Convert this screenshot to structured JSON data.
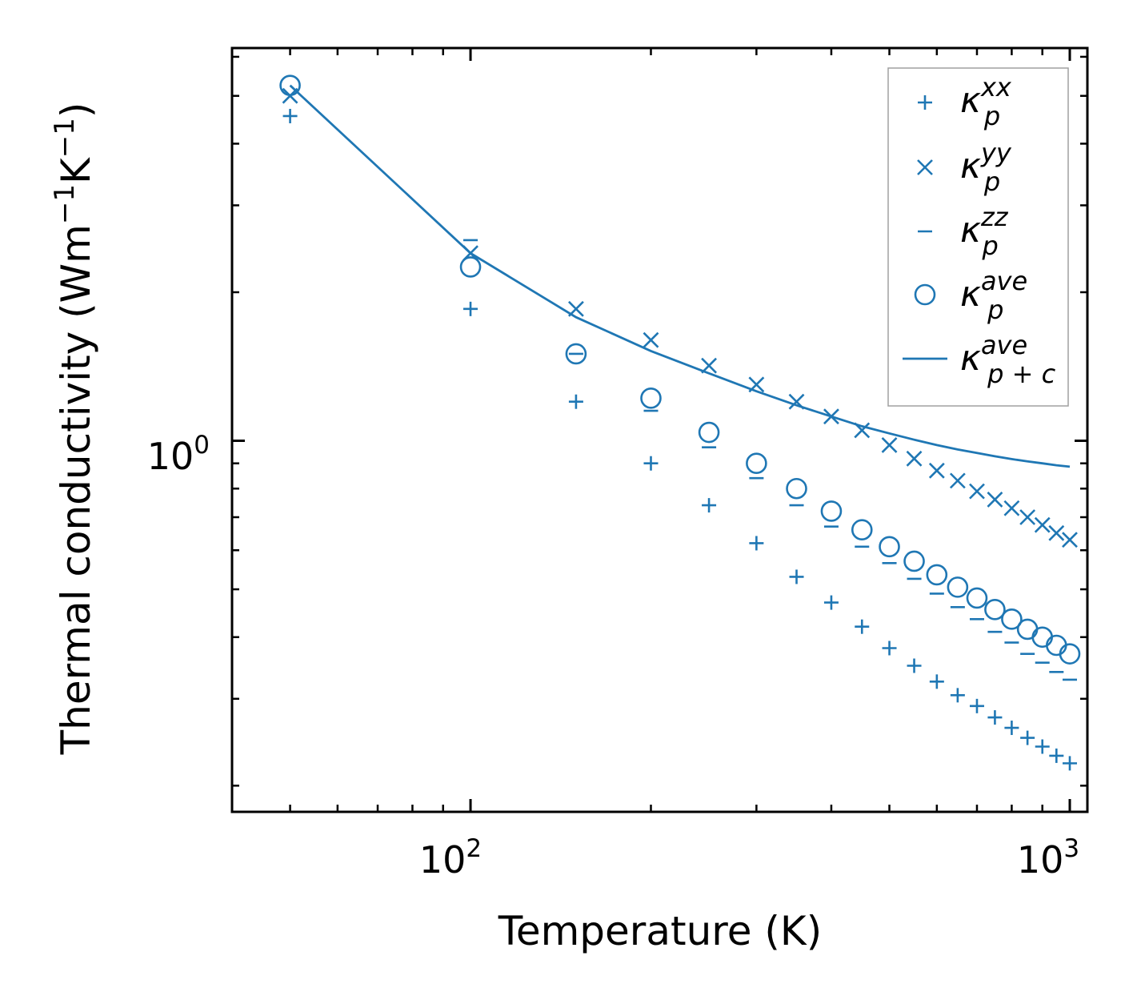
{
  "chart_data": {
    "type": "scatter",
    "xscale": "log",
    "yscale": "log",
    "xlim": [
      40,
      1070
    ],
    "ylim": [
      0.177,
      6.25
    ],
    "xlabel": "Temperature (K)",
    "ylabel": "Thermal conductivity (Wm",
    "ylabel_unit_exp1": "−1",
    "ylabel_unit_mid": "K",
    "ylabel_unit_exp2": "−1",
    "ylabel_close": ")",
    "xticks": [
      {
        "base": "10",
        "exp": "2",
        "value": 100
      },
      {
        "base": "10",
        "exp": "3",
        "value": 1000
      }
    ],
    "yticks": [
      {
        "base": "10",
        "exp": "0",
        "value": 1
      }
    ],
    "legend_position": "top-right",
    "x": [
      50,
      100,
      150,
      200,
      250,
      300,
      350,
      400,
      450,
      500,
      550,
      600,
      650,
      700,
      750,
      800,
      850,
      900,
      950,
      1000
    ],
    "series": [
      {
        "name": "κ",
        "sub": "p",
        "sup": "xx",
        "marker": "plus",
        "values": [
          4.55,
          1.85,
          1.2,
          0.9,
          0.74,
          0.62,
          0.53,
          0.47,
          0.42,
          0.38,
          0.35,
          0.325,
          0.305,
          0.29,
          0.275,
          0.262,
          0.25,
          0.24,
          0.23,
          0.222
        ]
      },
      {
        "name": "κ",
        "sub": "p",
        "sup": "yy",
        "marker": "x",
        "values": [
          5.0,
          2.4,
          1.85,
          1.6,
          1.42,
          1.3,
          1.2,
          1.12,
          1.05,
          0.98,
          0.92,
          0.87,
          0.83,
          0.79,
          0.76,
          0.73,
          0.7,
          0.675,
          0.65,
          0.63
        ]
      },
      {
        "name": "κ",
        "sub": "p",
        "sup": "zz",
        "marker": "hline",
        "values": [
          6.25,
          2.55,
          1.5,
          1.15,
          0.97,
          0.84,
          0.74,
          0.67,
          0.61,
          0.565,
          0.525,
          0.49,
          0.46,
          0.435,
          0.41,
          0.39,
          0.37,
          0.355,
          0.34,
          0.328
        ]
      },
      {
        "name": "κ",
        "sub": "p",
        "sup": "ave",
        "marker": "circle",
        "values": [
          5.25,
          2.25,
          1.5,
          1.22,
          1.04,
          0.9,
          0.8,
          0.72,
          0.66,
          0.61,
          0.57,
          0.535,
          0.505,
          0.48,
          0.455,
          0.435,
          0.415,
          0.4,
          0.385,
          0.37
        ]
      },
      {
        "name": "κ",
        "sub": "p + c",
        "sup": "ave",
        "marker": "line",
        "values": [
          5.25,
          2.4,
          1.78,
          1.52,
          1.37,
          1.26,
          1.18,
          1.12,
          1.07,
          1.035,
          1.005,
          0.98,
          0.96,
          0.945,
          0.93,
          0.918,
          0.908,
          0.9,
          0.892,
          0.886
        ]
      }
    ],
    "colors": {
      "series": "#1f77b4",
      "axes": "#000000",
      "legend_border": "#a0a0a0"
    }
  }
}
